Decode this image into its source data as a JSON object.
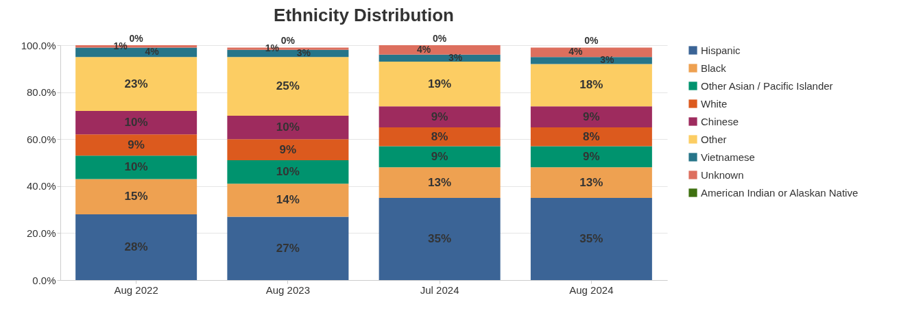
{
  "chart_data": {
    "type": "bar",
    "title": "Ethnicity Distribution",
    "stacked": true,
    "legend": "right",
    "grid": "y",
    "categories": [
      "Aug 2022",
      "Aug 2023",
      "Jul 2024",
      "Aug 2024"
    ],
    "ylim": [
      0,
      100
    ],
    "yticks": [
      {
        "value": 0,
        "label": "0.0%"
      },
      {
        "value": 20,
        "label": "20.0%"
      },
      {
        "value": 40,
        "label": "40.0%"
      },
      {
        "value": 60,
        "label": "60.0%"
      },
      {
        "value": 80,
        "label": "80.0%"
      },
      {
        "value": 100,
        "label": "100.0%"
      }
    ],
    "series": [
      {
        "name": "Hispanic",
        "color": "#3b6496",
        "values": [
          28,
          27,
          35,
          35
        ],
        "value_labels": [
          "28%",
          "27%",
          "35%",
          "35%"
        ]
      },
      {
        "name": "Black",
        "color": "#eea151",
        "values": [
          15,
          14,
          13,
          13
        ],
        "value_labels": [
          "15%",
          "14%",
          "13%",
          "13%"
        ]
      },
      {
        "name": "Other Asian / Pacific Islander",
        "color": "#00936e",
        "values": [
          10,
          10,
          9,
          9
        ],
        "value_labels": [
          "10%",
          "10%",
          "9%",
          "9%"
        ]
      },
      {
        "name": "White",
        "color": "#dc5a1e",
        "values": [
          9,
          9,
          8,
          8
        ],
        "value_labels": [
          "9%",
          "9%",
          "8%",
          "8%"
        ]
      },
      {
        "name": "Chinese",
        "color": "#9e2b5e",
        "values": [
          10,
          10,
          9,
          9
        ],
        "value_labels": [
          "10%",
          "10%",
          "9%",
          "9%"
        ]
      },
      {
        "name": "Other",
        "color": "#fccd63",
        "values": [
          23,
          25,
          19,
          18
        ],
        "value_labels": [
          "23%",
          "25%",
          "19%",
          "18%"
        ]
      },
      {
        "name": "Vietnamese",
        "color": "#267589",
        "values": [
          4,
          3,
          3,
          3
        ],
        "value_labels": [
          "4%",
          "3%",
          "3%",
          "3%"
        ]
      },
      {
        "name": "Unknown",
        "color": "#dd6f5e",
        "values": [
          1,
          1,
          4,
          4
        ],
        "value_labels": [
          "1%",
          "1%",
          "4%",
          "4%"
        ]
      },
      {
        "name": "American Indian or Alaskan Native",
        "color": "#3f7010",
        "values": [
          0,
          0,
          0,
          0
        ],
        "value_labels": [
          "0%",
          "0%",
          "0%",
          "0%"
        ]
      }
    ]
  }
}
